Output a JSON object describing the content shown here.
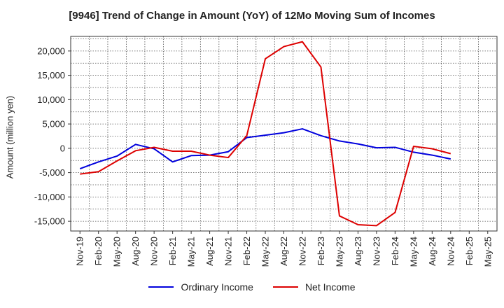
{
  "chart_data": {
    "type": "line",
    "title": "[9946]  Trend of Change in Amount (YoY) of 12Mo Moving Sum of Incomes",
    "ylabel": "Amount (million yen)",
    "xlabel": "",
    "ylim": [
      -17000,
      23000
    ],
    "yticks": [
      20000,
      15000,
      10000,
      5000,
      0,
      -5000,
      -10000,
      -15000
    ],
    "ytick_labels": [
      "20,000",
      "15,000",
      "10,000",
      "5,000",
      "0",
      "-5,000",
      "-10,000",
      "-15,000"
    ],
    "categories": [
      "Nov-19",
      "Feb-20",
      "May-20",
      "Aug-20",
      "Nov-20",
      "Feb-21",
      "May-21",
      "Aug-21",
      "Nov-21",
      "Feb-22",
      "May-22",
      "Aug-22",
      "Nov-22",
      "Feb-23",
      "May-23",
      "Aug-23",
      "Nov-23",
      "Feb-24",
      "May-24",
      "Aug-24",
      "Nov-24",
      "Feb-25",
      "May-25"
    ],
    "grid": true,
    "legend_position": "bottom",
    "series": [
      {
        "name": "Ordinary Income",
        "color": "#0000dd",
        "values": [
          -4200,
          -2800,
          -1600,
          800,
          -100,
          -2800,
          -1500,
          -1400,
          -700,
          2200,
          2700,
          3200,
          4000,
          2600,
          1500,
          900,
          100,
          200,
          -800,
          -1400,
          -2200,
          null,
          null
        ]
      },
      {
        "name": "Net Income",
        "color": "#dd0000",
        "values": [
          -5300,
          -4800,
          -2600,
          -500,
          200,
          -600,
          -600,
          -1400,
          -1900,
          2600,
          18400,
          20900,
          21900,
          16700,
          -13900,
          -15700,
          -15900,
          -13200,
          400,
          -100,
          -1100,
          null,
          null
        ]
      }
    ]
  }
}
